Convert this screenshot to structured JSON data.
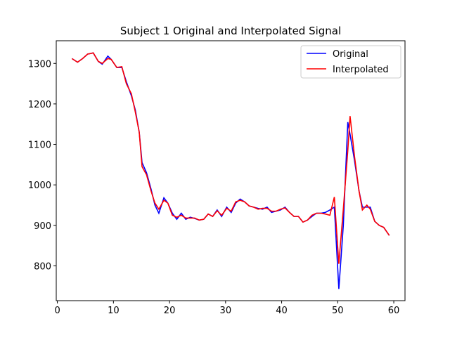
{
  "chart_data": {
    "type": "line",
    "title": "Subject 1 Original and Interpolated Signal",
    "x": [
      2.6,
      3.6,
      4.5,
      5.4,
      6.4,
      7.3,
      8.0,
      9.0,
      9.6,
      10.6,
      11.5,
      12.3,
      13.2,
      13.9,
      14.6,
      15.1,
      15.9,
      16.7,
      17.4,
      18.1,
      19.0,
      19.7,
      20.5,
      21.3,
      22.1,
      22.9,
      23.7,
      24.5,
      25.3,
      26.1,
      26.9,
      27.7,
      28.5,
      29.3,
      30.2,
      31.0,
      31.8,
      32.6,
      33.4,
      34.2,
      35.0,
      35.8,
      36.6,
      37.4,
      38.2,
      39.0,
      39.8,
      40.6,
      41.4,
      42.2,
      43.0,
      43.8,
      44.6,
      45.4,
      46.2,
      47.0,
      47.8,
      48.6,
      49.4,
      50.2,
      51.0,
      51.8,
      52.2,
      53.0,
      53.8,
      54.4,
      55.2,
      55.8,
      56.6,
      57.4,
      58.2,
      59.2
    ],
    "series": [
      {
        "name": "Original",
        "color": "#0000ff",
        "values": [
          1312,
          1303,
          1312,
          1323,
          1326,
          1305,
          1298,
          1318,
          1310,
          1290,
          1290,
          1255,
          1220,
          1185,
          1130,
          1055,
          1030,
          990,
          950,
          930,
          968,
          955,
          930,
          915,
          930,
          915,
          920,
          917,
          913,
          915,
          928,
          922,
          938,
          922,
          945,
          932,
          955,
          965,
          958,
          948,
          945,
          942,
          940,
          945,
          932,
          935,
          938,
          945,
          932,
          922,
          922,
          908,
          913,
          922,
          930,
          930,
          932,
          938,
          945,
          743,
          900,
          1155,
          1125,
          1060,
          985,
          945,
          945,
          945,
          910,
          900,
          895,
          875
        ]
      },
      {
        "name": "Interpolated",
        "color": "#ff0000",
        "values": [
          1312,
          1303,
          1312,
          1323,
          1326,
          1305,
          1300,
          1312,
          1310,
          1290,
          1292,
          1250,
          1225,
          1180,
          1130,
          1045,
          1025,
          985,
          955,
          940,
          962,
          955,
          925,
          920,
          925,
          918,
          918,
          918,
          913,
          915,
          928,
          922,
          936,
          925,
          942,
          935,
          958,
          962,
          958,
          948,
          945,
          940,
          942,
          942,
          935,
          935,
          940,
          943,
          932,
          922,
          922,
          908,
          913,
          925,
          930,
          930,
          928,
          925,
          970,
          805,
          940,
          1085,
          1170,
          1070,
          985,
          938,
          950,
          940,
          910,
          900,
          895,
          875
        ]
      }
    ],
    "xlim": [
      -0.2,
      62.0
    ],
    "ylim": [
      714,
      1356
    ],
    "xticks": [
      0,
      10,
      20,
      30,
      40,
      50,
      60
    ],
    "yticks": [
      800,
      900,
      1000,
      1100,
      1200,
      1300
    ],
    "legend": "upper right"
  }
}
